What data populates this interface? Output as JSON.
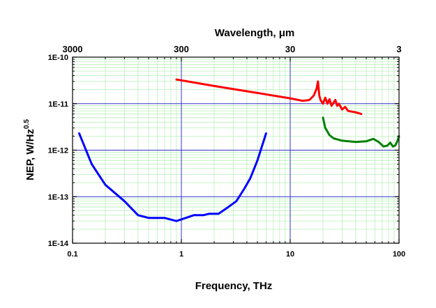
{
  "chart_data": {
    "type": "line",
    "title": "",
    "xlabel": "Frequency, THz",
    "ylabel_main": "NEP, W/Hz",
    "ylabel_sup": "0.5",
    "x2label_main": "Wavelength, ",
    "x2label_unit": "μm",
    "xscale": "log",
    "yscale": "log",
    "xlim": [
      0.1,
      100
    ],
    "ylim": [
      1e-14,
      1e-10
    ],
    "grid": true,
    "legend": "none",
    "x_ticks": [
      {
        "value": 0.1,
        "label": "0.1"
      },
      {
        "value": 1,
        "label": "1"
      },
      {
        "value": 10,
        "label": "10"
      },
      {
        "value": 100,
        "label": "100"
      }
    ],
    "y_ticks": [
      {
        "value": 1e-14,
        "label": "1E-14"
      },
      {
        "value": 1e-13,
        "label": "1E-13"
      },
      {
        "value": 1e-12,
        "label": "1E-12"
      },
      {
        "value": 1e-11,
        "label": "1E-11"
      },
      {
        "value": 1e-10,
        "label": "1E-10"
      }
    ],
    "x2_ticks": [
      {
        "wavelength_um": 3000,
        "label": "3000"
      },
      {
        "wavelength_um": 300,
        "label": "300"
      },
      {
        "wavelength_um": 30,
        "label": "30"
      },
      {
        "wavelength_um": 3,
        "label": "3"
      }
    ],
    "series": [
      {
        "color": "#0000ff",
        "x": [
          0.115,
          0.15,
          0.2,
          0.3,
          0.4,
          0.5,
          0.6,
          0.7,
          0.9,
          1.1,
          1.3,
          1.6,
          1.8,
          2.2,
          2.7,
          3.2,
          3.8,
          4.3,
          5.0,
          6.0
        ],
        "y": [
          2.3e-12,
          5e-13,
          1.8e-13,
          8e-14,
          4e-14,
          3.5e-14,
          3.5e-14,
          3.5e-14,
          3e-14,
          3.5e-14,
          4e-14,
          4e-14,
          4.3e-14,
          4.3e-14,
          6e-14,
          8e-14,
          1.5e-13,
          2.5e-13,
          6e-13,
          2.3e-12
        ]
      },
      {
        "color": "#ff0000",
        "x": [
          0.9,
          2,
          5,
          10,
          13,
          15,
          16.5,
          17.5,
          18,
          18.5,
          19,
          20,
          21,
          22,
          23,
          24,
          25,
          26,
          27,
          28,
          30,
          32,
          34,
          36,
          40,
          45
        ],
        "y": [
          3.3e-11,
          2.4e-11,
          1.7e-11,
          1.3e-11,
          1.15e-11,
          1.2e-11,
          1.5e-11,
          2.1e-11,
          3e-11,
          1.5e-11,
          1.2e-11,
          1e-11,
          1.35e-11,
          1e-11,
          1.25e-11,
          9e-12,
          1.05e-11,
          1.2e-11,
          9e-12,
          1e-11,
          7.5e-12,
          8.5e-12,
          7e-12,
          6.8e-12,
          6.5e-12,
          6e-12
        ]
      },
      {
        "color": "#008000",
        "x": [
          20,
          21,
          23,
          25,
          30,
          40,
          50,
          58,
          65,
          72,
          78,
          83,
          88,
          92,
          96,
          100
        ],
        "y": [
          5e-12,
          3e-12,
          2.1e-12,
          1.8e-12,
          1.6e-12,
          1.5e-12,
          1.55e-12,
          1.75e-12,
          1.5e-12,
          1.2e-12,
          1.25e-12,
          1.45e-12,
          1.2e-12,
          1.25e-12,
          1.5e-12,
          2e-12
        ]
      }
    ]
  }
}
